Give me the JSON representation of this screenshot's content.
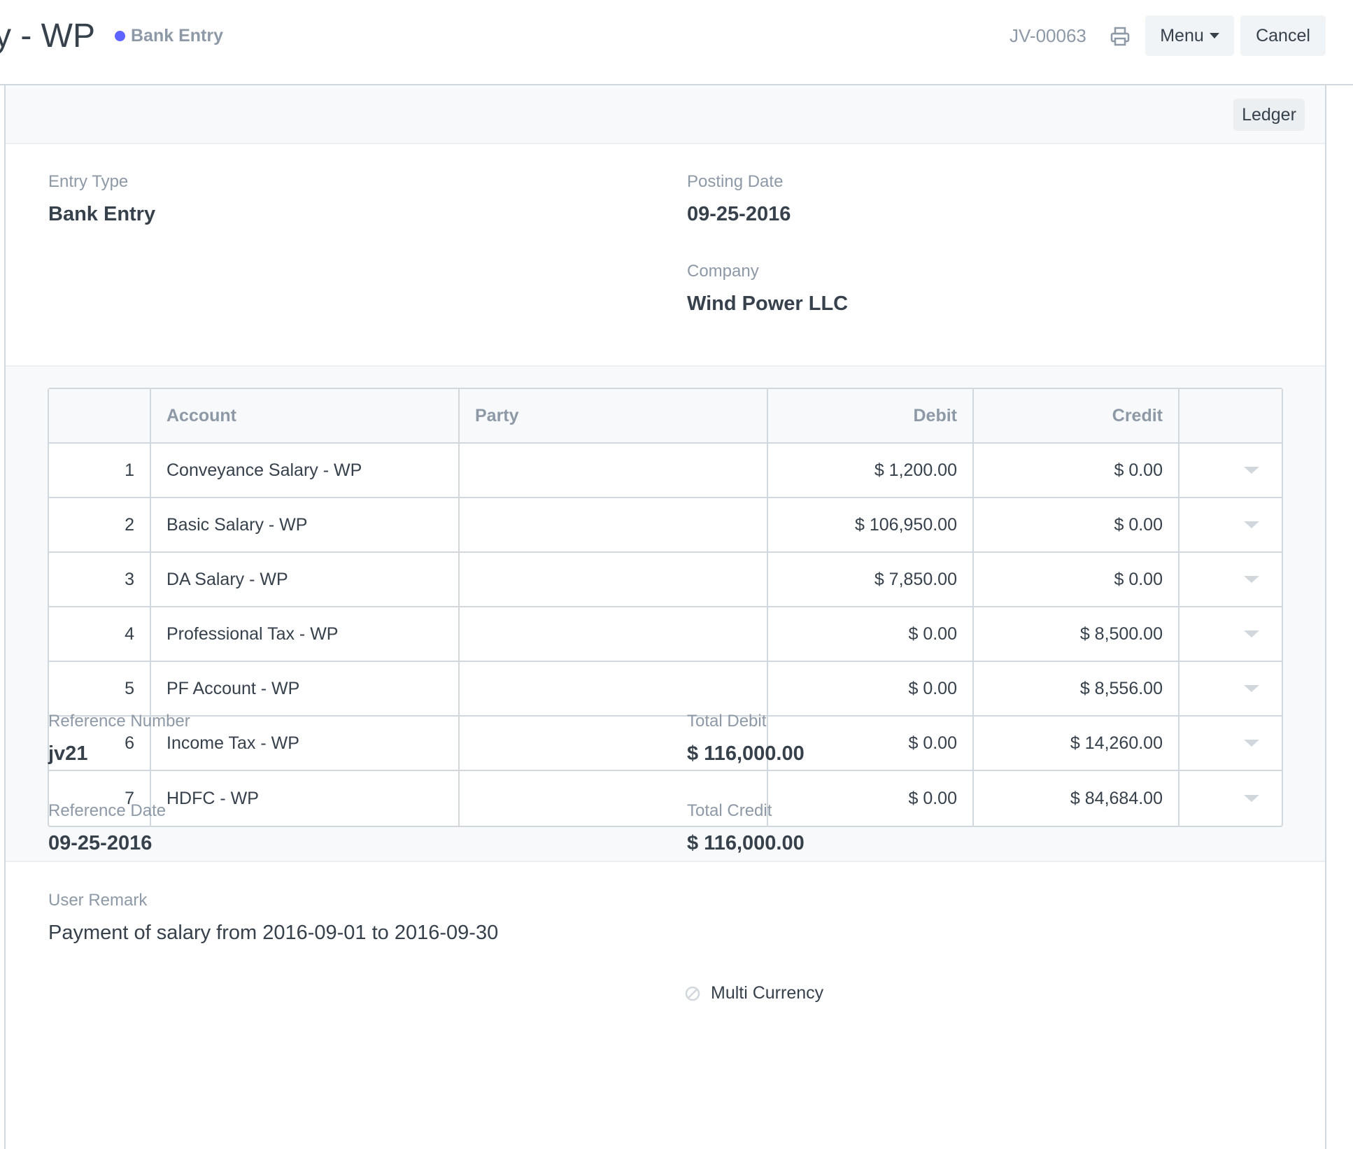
{
  "header": {
    "title": "y - WP",
    "status": "Bank Entry",
    "status_color": "#5e64ff",
    "doc_name": "JV-00063",
    "print_icon": "printer-icon",
    "menu_label": "Menu",
    "cancel_label": "Cancel"
  },
  "toolbar": {
    "ledger_label": "Ledger"
  },
  "form": {
    "entry_type": {
      "label": "Entry Type",
      "value": "Bank Entry"
    },
    "posting_date": {
      "label": "Posting Date",
      "value": "09-25-2016"
    },
    "company": {
      "label": "Company",
      "value": "Wind Power LLC"
    },
    "reference_number": {
      "label": "Reference Number",
      "value": "jv21"
    },
    "reference_date": {
      "label": "Reference Date",
      "value": "09-25-2016"
    },
    "user_remark": {
      "label": "User Remark",
      "value": "Payment of salary from 2016-09-01 to 2016-09-30"
    },
    "total_debit": {
      "label": "Total Debit",
      "value": "$ 116,000.00"
    },
    "total_credit": {
      "label": "Total Credit",
      "value": "$ 116,000.00"
    },
    "multi_currency": {
      "label": "Multi Currency",
      "checked": false
    }
  },
  "accounts_table": {
    "columns": [
      "",
      "Account",
      "Party",
      "Debit",
      "Credit",
      ""
    ],
    "rows": [
      {
        "idx": "1",
        "account": "Conveyance Salary - WP",
        "party": "",
        "debit": "$ 1,200.00",
        "credit": "$ 0.00"
      },
      {
        "idx": "2",
        "account": "Basic Salary - WP",
        "party": "",
        "debit": "$ 106,950.00",
        "credit": "$ 0.00"
      },
      {
        "idx": "3",
        "account": "DA Salary - WP",
        "party": "",
        "debit": "$ 7,850.00",
        "credit": "$ 0.00"
      },
      {
        "idx": "4",
        "account": "Professional Tax - WP",
        "party": "",
        "debit": "$ 0.00",
        "credit": "$ 8,500.00"
      },
      {
        "idx": "5",
        "account": "PF Account - WP",
        "party": "",
        "debit": "$ 0.00",
        "credit": "$ 8,556.00"
      },
      {
        "idx": "6",
        "account": "Income Tax - WP",
        "party": "",
        "debit": "$ 0.00",
        "credit": "$ 14,260.00"
      },
      {
        "idx": "7",
        "account": "HDFC - WP",
        "party": "",
        "debit": "$ 0.00",
        "credit": "$ 84,684.00"
      }
    ]
  }
}
